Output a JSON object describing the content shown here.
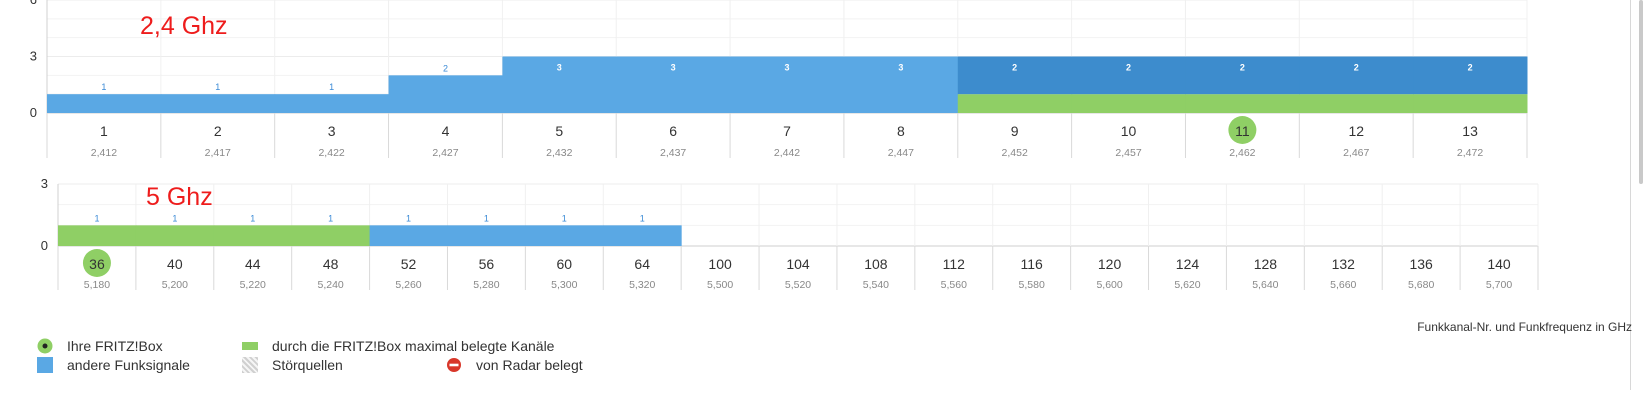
{
  "chart_data": [
    {
      "type": "bar",
      "title": "2,4 Ghz",
      "yticks": [
        0,
        3,
        6
      ],
      "ylim": [
        0,
        6
      ],
      "channels": [
        "1",
        "2",
        "3",
        "4",
        "5",
        "6",
        "7",
        "8",
        "9",
        "10",
        "11",
        "12",
        "13"
      ],
      "frequencies": [
        "2,412",
        "2,417",
        "2,422",
        "2,427",
        "2,432",
        "2,437",
        "2,442",
        "2,447",
        "2,452",
        "2,457",
        "2,462",
        "2,467",
        "2,472"
      ],
      "series": [
        {
          "legend_key": "andere",
          "values": [
            1,
            1,
            1,
            2,
            3,
            3,
            3,
            3,
            2,
            2,
            2,
            2,
            2
          ]
        },
        {
          "legend_key": "belegt",
          "values": [
            0,
            0,
            0,
            0,
            0,
            0,
            0,
            0,
            1,
            1,
            1,
            1,
            1
          ]
        }
      ],
      "counts": [
        "1",
        "1",
        "1",
        "2",
        "3",
        "3",
        "3",
        "3",
        "2",
        "2",
        "2",
        "2",
        "2"
      ],
      "fritzbox_channel": "11"
    },
    {
      "type": "bar",
      "title": "5 Ghz",
      "yticks": [
        0,
        3
      ],
      "ylim": [
        0,
        3
      ],
      "channels": [
        "36",
        "40",
        "44",
        "48",
        "52",
        "56",
        "60",
        "64",
        "100",
        "104",
        "108",
        "112",
        "116",
        "120",
        "124",
        "128",
        "132",
        "136",
        "140"
      ],
      "frequencies": [
        "5,180",
        "5,200",
        "5,220",
        "5,240",
        "5,260",
        "5,280",
        "5,300",
        "5,320",
        "5,500",
        "5,520",
        "5,540",
        "5,560",
        "5,580",
        "5,600",
        "5,620",
        "5,640",
        "5,660",
        "5,680",
        "5,700"
      ],
      "series": [
        {
          "legend_key": "andere",
          "values": [
            0,
            0,
            0,
            0,
            1,
            1,
            1,
            1,
            0,
            0,
            0,
            0,
            0,
            0,
            0,
            0,
            0,
            0,
            0
          ]
        },
        {
          "legend_key": "belegt",
          "values": [
            1,
            1,
            1,
            1,
            0,
            0,
            0,
            0,
            0,
            0,
            0,
            0,
            0,
            0,
            0,
            0,
            0,
            0,
            0
          ]
        }
      ],
      "counts": [
        "1",
        "1",
        "1",
        "1",
        "1",
        "1",
        "1",
        "1",
        "",
        "",
        "",
        "",
        "",
        "",
        "",
        "",
        "",
        "",
        ""
      ],
      "fritzbox_channel": "36"
    }
  ],
  "colors": {
    "andere": "#5aa8e4",
    "andere_stacked": "#3d8ccd",
    "belegt": "#8fcf65",
    "marker": "#8fcf65",
    "band_label": "#ee1c1c"
  },
  "legend": {
    "fritzbox": "Ihre FRITZ!Box",
    "andere": "andere Funksignale",
    "belegt": "durch die FRITZ!Box maximal belegte Kanäle",
    "stoer": "Störquellen",
    "radar": "von Radar belegt"
  },
  "caption": "Funkkanal-Nr. und Funkfrequenz in GHz"
}
